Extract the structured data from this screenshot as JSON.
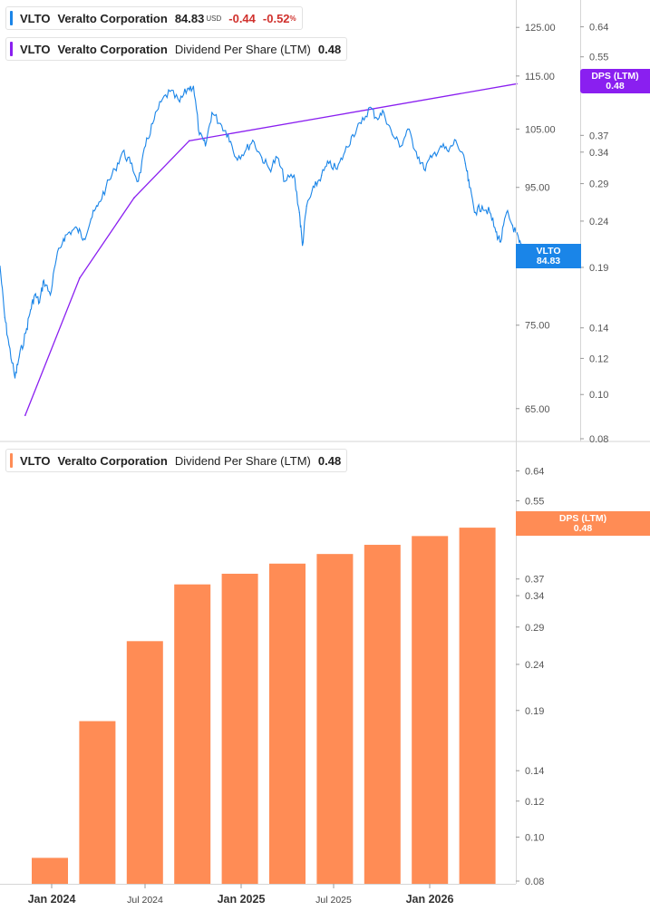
{
  "colors": {
    "price_line": "#1a85e8",
    "dps_line": "#8a1ff0",
    "bar": "#ff8c55",
    "price_tag": "#1a85e8",
    "dps_tag_top": "#8a1ff0",
    "dps_tag_bottom": "#ff8c55",
    "negative": "#d0312d",
    "grid": "#e6e6e6"
  },
  "legend_top_price": {
    "ticker": "VLTO",
    "name": "Veralto Corporation",
    "price": "84.83",
    "currency": "USD",
    "change": "-0.44",
    "change_pct": "-0.52",
    "pct_sign": "%"
  },
  "legend_top_dps": {
    "ticker": "VLTO",
    "name": "Veralto Corporation",
    "metric": "Dividend Per Share (LTM)",
    "value": "0.48"
  },
  "legend_bottom": {
    "ticker": "VLTO",
    "name": "Veralto Corporation",
    "metric": "Dividend Per Share (LTM)",
    "value": "0.48"
  },
  "tags": {
    "price": {
      "label": "VLTO",
      "value": "84.83"
    },
    "dps_top": {
      "label": "DPS (LTM)",
      "value": "0.48"
    },
    "dps_bottom": {
      "label": "DPS (LTM)",
      "value": "0.48"
    }
  },
  "chart_data": [
    {
      "type": "line",
      "description_series": [
        "VLTO",
        "Dividend Per Share (LTM)"
      ],
      "price_axis": {
        "scale": "log",
        "ticks": [
          65,
          75,
          95,
          105,
          115,
          125
        ],
        "range": [
          62.5,
          130
        ]
      },
      "dps_axis": {
        "scale": "log",
        "ticks": [
          0.08,
          0.1,
          0.12,
          0.14,
          0.19,
          0.24,
          0.29,
          0.34,
          0.37,
          0.55,
          0.64
        ],
        "range": [
          0.08,
          0.7
        ]
      },
      "x_ticks": [
        "Jan 2024",
        "Jul 2024",
        "Jan 2025",
        "Jul 2025",
        "Jan 2026"
      ],
      "series": [
        {
          "name": "VLTO",
          "axis": "price",
          "points": [
            [
              "2023-11-20",
              83
            ],
            [
              "2023-11-28",
              76
            ],
            [
              "2023-12-05",
              72.5
            ],
            [
              "2023-12-15",
              68.5
            ],
            [
              "2023-12-22",
              71
            ],
            [
              "2024-01-02",
              74
            ],
            [
              "2024-01-10",
              77
            ],
            [
              "2024-01-17",
              79
            ],
            [
              "2024-01-25",
              78
            ],
            [
              "2024-02-01",
              81
            ],
            [
              "2024-02-12",
              79
            ],
            [
              "2024-02-22",
              84
            ],
            [
              "2024-03-05",
              87
            ],
            [
              "2024-03-15",
              88
            ],
            [
              "2024-03-28",
              88.5
            ],
            [
              "2024-04-08",
              87
            ],
            [
              "2024-04-20",
              90
            ],
            [
              "2024-05-01",
              92
            ],
            [
              "2024-05-15",
              95
            ],
            [
              "2024-05-30",
              98
            ],
            [
              "2024-06-12",
              101
            ],
            [
              "2024-06-25",
              99
            ],
            [
              "2024-07-08",
              96
            ],
            [
              "2024-07-20",
              102
            ],
            [
              "2024-08-01",
              106
            ],
            [
              "2024-08-15",
              110
            ],
            [
              "2024-08-30",
              112
            ],
            [
              "2024-09-15",
              110
            ],
            [
              "2024-09-28",
              112.5
            ],
            [
              "2024-10-08",
              113
            ],
            [
              "2024-10-18",
              104
            ],
            [
              "2024-10-28",
              102
            ],
            [
              "2024-11-08",
              108
            ],
            [
              "2024-11-22",
              106
            ],
            [
              "2024-12-05",
              104
            ],
            [
              "2024-12-18",
              100
            ],
            [
              "2025-01-02",
              101
            ],
            [
              "2025-01-15",
              103
            ],
            [
              "2025-01-30",
              100
            ],
            [
              "2025-02-12",
              98
            ],
            [
              "2025-02-25",
              100
            ],
            [
              "2025-03-10",
              96
            ],
            [
              "2025-03-25",
              97
            ],
            [
              "2025-04-03",
              91
            ],
            [
              "2025-04-08",
              86
            ],
            [
              "2025-04-15",
              92
            ],
            [
              "2025-04-28",
              95
            ],
            [
              "2025-05-10",
              97
            ],
            [
              "2025-05-22",
              99
            ],
            [
              "2025-06-05",
              98
            ],
            [
              "2025-06-18",
              101
            ],
            [
              "2025-07-01",
              104
            ],
            [
              "2025-07-15",
              106
            ],
            [
              "2025-07-30",
              109
            ],
            [
              "2025-08-10",
              107
            ],
            [
              "2025-08-22",
              108
            ],
            [
              "2025-09-05",
              104
            ],
            [
              "2025-09-20",
              102
            ],
            [
              "2025-10-01",
              105
            ],
            [
              "2025-10-15",
              101
            ],
            [
              "2025-10-28",
              98
            ],
            [
              "2025-11-10",
              100
            ],
            [
              "2025-11-25",
              102
            ],
            [
              "2025-12-08",
              101
            ],
            [
              "2025-12-20",
              103
            ],
            [
              "2026-01-05",
              99
            ],
            [
              "2026-01-12",
              95
            ],
            [
              "2026-01-22",
              91
            ],
            [
              "2026-02-02",
              92
            ],
            [
              "2026-02-15",
              91
            ],
            [
              "2026-02-25",
              88
            ],
            [
              "2026-03-05",
              86.5
            ],
            [
              "2026-03-15",
              91
            ],
            [
              "2026-03-25",
              89
            ],
            [
              "2026-04-05",
              86.5
            ],
            [
              "2026-04-13",
              84.83
            ]
          ]
        },
        {
          "name": "Dividend Per Share (LTM)",
          "axis": "dps",
          "points": [
            [
              "2024-01-01",
              0.09
            ],
            [
              "2024-04-01",
              0.18
            ],
            [
              "2024-07-01",
              0.27
            ],
            [
              "2024-10-01",
              0.36
            ],
            [
              "2026-04-01",
              0.48
            ]
          ]
        }
      ]
    },
    {
      "type": "bar",
      "series_name": "Dividend Per Share (LTM)",
      "axis": {
        "scale": "log",
        "ticks": [
          0.08,
          0.1,
          0.12,
          0.14,
          0.19,
          0.24,
          0.29,
          0.34,
          0.37,
          0.55,
          0.64
        ],
        "range": [
          0.08,
          0.7
        ]
      },
      "categories": [
        "2023-12-31",
        "2024-03-31",
        "2024-06-30",
        "2024-09-30",
        "2024-12-31",
        "2025-03-31",
        "2025-06-30",
        "2025-09-30",
        "2025-12-31",
        "2026-03-31"
      ],
      "values": [
        0.09,
        0.18,
        0.27,
        0.36,
        0.38,
        0.4,
        0.42,
        0.44,
        0.46,
        0.48
      ],
      "x_ticks": [
        "Jan 2024",
        "Jul 2024",
        "Jan 2025",
        "Jul 2025",
        "Jan 2026"
      ]
    }
  ]
}
